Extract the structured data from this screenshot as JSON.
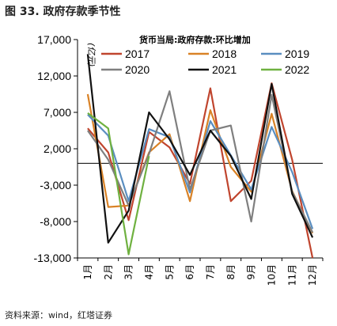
{
  "figure": {
    "title": "图 33. 政府存款季节性",
    "source": "资料来源：wind，红塔证券"
  },
  "chart_data": {
    "type": "line",
    "title": "",
    "annotation": "货币当局:政府存款:环比增加",
    "unit_label": "(亿元)",
    "xlabel": "",
    "ylabel": "",
    "categories": [
      "1月",
      "2月",
      "3月",
      "4月",
      "5月",
      "6月",
      "7月",
      "8月",
      "9月",
      "10月",
      "11月",
      "12月"
    ],
    "ylim": [
      -13000,
      17000
    ],
    "yticks": [
      17000,
      12000,
      7000,
      2000,
      -3000,
      -8000,
      -13000
    ],
    "ytick_labels": [
      "17,000",
      "12,000",
      "7,000",
      "2,000",
      "-3,000",
      "-8,000",
      "-13,000"
    ],
    "legend_position": "top",
    "grid": false,
    "series": [
      {
        "name": "2017",
        "color": "#c0452e",
        "values": [
          4800,
          1500,
          -7800,
          4300,
          2200,
          -2800,
          10300,
          -5200,
          -2400,
          11000,
          500,
          -13000
        ]
      },
      {
        "name": "2018",
        "color": "#d98226",
        "values": [
          9500,
          -6000,
          -5800,
          1500,
          4000,
          -5200,
          7300,
          -500,
          -3900,
          6800,
          -3800,
          -9600
        ]
      },
      {
        "name": "2019",
        "color": "#5a8ec0",
        "values": [
          6700,
          3800,
          -5200,
          4700,
          3600,
          -4000,
          5800,
          1100,
          -3600,
          5000,
          -1200,
          -9000
        ]
      },
      {
        "name": "2020",
        "color": "#7f7f7f",
        "values": [
          4500,
          500,
          -5800,
          1300,
          9900,
          -3600,
          4500,
          5200,
          -8000,
          9400,
          -3900,
          -9500
        ]
      },
      {
        "name": "2021",
        "color": "#111111",
        "values": [
          15000,
          -10900,
          -6500,
          7000,
          3300,
          -1600,
          4500,
          1000,
          -4900,
          10900,
          -4200,
          -10200
        ]
      },
      {
        "name": "2022",
        "color": "#6fb140",
        "values": [
          6900,
          4800,
          -12500,
          1000,
          null,
          null,
          null,
          null,
          null,
          null,
          null,
          null
        ]
      }
    ]
  }
}
